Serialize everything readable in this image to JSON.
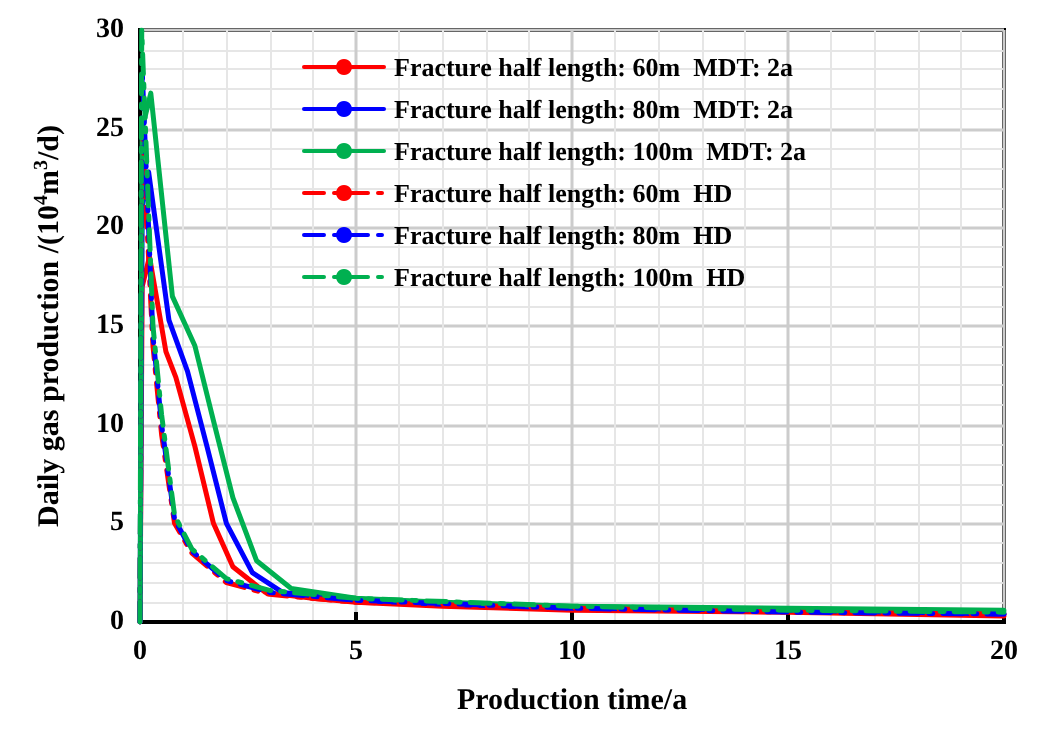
{
  "chart_data": {
    "type": "line",
    "xlabel": "Production time/a",
    "ylabel": "Daily gas production /(10$^{4}$m$^{3}$/d)",
    "xlim": [
      0,
      20
    ],
    "xticks": [
      0,
      5,
      10,
      15,
      20
    ],
    "ylim": [
      0,
      30
    ],
    "yticks": [
      0,
      5,
      10,
      15,
      20,
      25,
      30
    ],
    "grid": true,
    "legend": "top right",
    "marker": "none",
    "series": [
      {
        "name": "Fracture half length: 60m  MDT: 2a",
        "color": "#ff0000",
        "line_style": "solid",
        "x": [
          0,
          0.05,
          0.22,
          0.6,
          0.83,
          1.27,
          1.7,
          2.15,
          2.9,
          4,
          5,
          7,
          10,
          15,
          20
        ],
        "values": [
          0,
          17,
          18.5,
          13.7,
          12.4,
          8.9,
          5.0,
          2.8,
          1.5,
          1.2,
          1.0,
          0.8,
          0.6,
          0.5,
          0.3
        ]
      },
      {
        "name": "Fracture half length: 80m  MDT: 2a",
        "color": "#0000ff",
        "line_style": "solid",
        "x": [
          0,
          0.05,
          0.2,
          0.67,
          1.1,
          1.55,
          2.0,
          2.6,
          3.3,
          5,
          7,
          10,
          15,
          20
        ],
        "values": [
          0,
          21,
          22.8,
          15.3,
          12.7,
          8.9,
          5.0,
          2.5,
          1.5,
          1.1,
          0.9,
          0.7,
          0.6,
          0.4
        ]
      },
      {
        "name": "Fracture half length: 100m  MDT: 2a",
        "color": "#00b050",
        "line_style": "solid",
        "x": [
          0,
          0.05,
          0.25,
          0.75,
          1.27,
          1.7,
          2.15,
          2.7,
          3.5,
          5,
          7,
          10,
          15,
          20
        ],
        "values": [
          0,
          25,
          26.8,
          16.5,
          14.0,
          10.2,
          6.3,
          3.1,
          1.7,
          1.2,
          1.0,
          0.8,
          0.7,
          0.6
        ]
      },
      {
        "name": "Fracture half length: 60m  HD",
        "color": "#ff0000",
        "line_style": "dashed",
        "x": [
          0,
          0.05,
          0.3,
          0.5,
          0.8,
          1.2,
          2.0,
          3,
          5,
          10,
          15,
          20
        ],
        "values": [
          0,
          25,
          14,
          9.5,
          5,
          3.5,
          2.0,
          1.4,
          1.0,
          0.7,
          0.5,
          0.4
        ]
      },
      {
        "name": "Fracture half length: 80m  HD",
        "color": "#0000ff",
        "line_style": "dashed",
        "x": [
          0,
          0.05,
          0.3,
          0.5,
          0.8,
          1.2,
          2.0,
          3,
          5,
          10,
          15,
          20
        ],
        "values": [
          0,
          28,
          14.5,
          10,
          5.2,
          3.6,
          2.1,
          1.5,
          1.1,
          0.7,
          0.5,
          0.4
        ]
      },
      {
        "name": "Fracture half length: 100m  HD",
        "color": "#00b050",
        "line_style": "dashed",
        "x": [
          0,
          0.04,
          0.3,
          0.5,
          0.8,
          1.2,
          2.0,
          3,
          5,
          10,
          15,
          20
        ],
        "values": [
          0,
          30,
          15,
          10.5,
          5.4,
          3.7,
          2.2,
          1.6,
          1.2,
          0.8,
          0.6,
          0.5
        ]
      }
    ]
  }
}
